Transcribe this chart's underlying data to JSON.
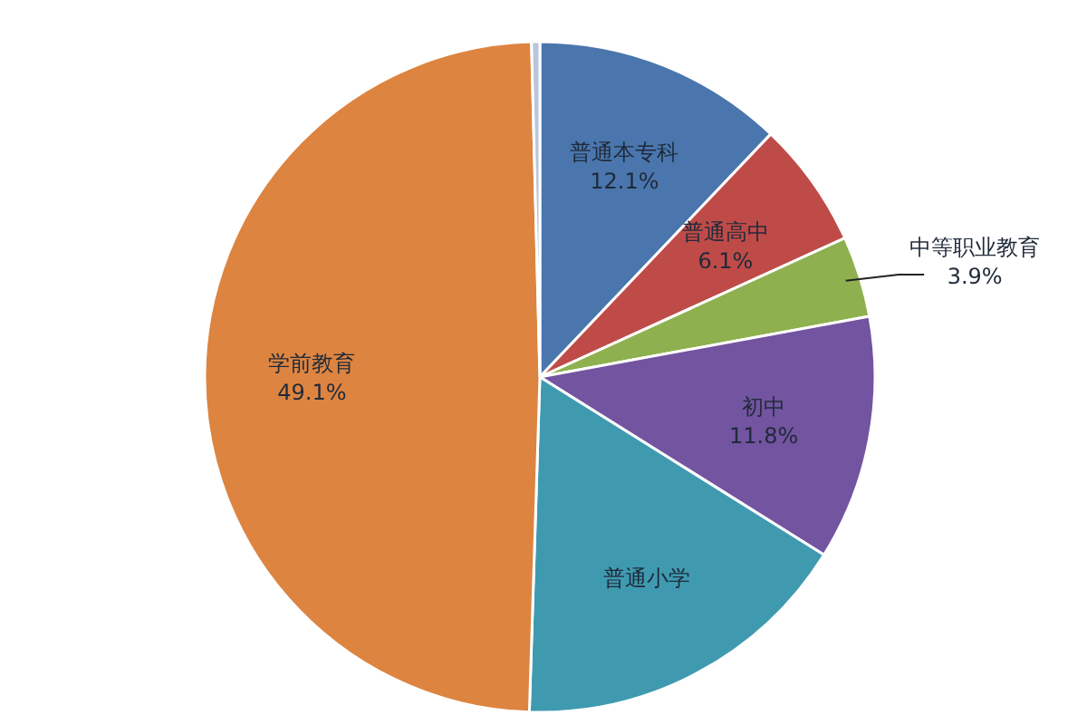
{
  "chart_data": {
    "type": "pie",
    "categories": [
      "普通本专科",
      "普通高中",
      "中等职业教育",
      "初中",
      "普通小学",
      "学前教育",
      null
    ],
    "values": [
      12.1,
      6.1,
      3.9,
      11.8,
      16.6,
      49.1,
      0.4
    ],
    "value_labels": [
      "12.1%",
      "6.1%",
      "3.9%",
      "11.8%",
      null,
      "49.1%",
      null
    ],
    "colors": [
      "#4a76ad",
      "#bf4b48",
      "#8fb04f",
      "#7354a0",
      "#3f9ab0",
      "#dd8440",
      "#b8c6dc"
    ]
  }
}
